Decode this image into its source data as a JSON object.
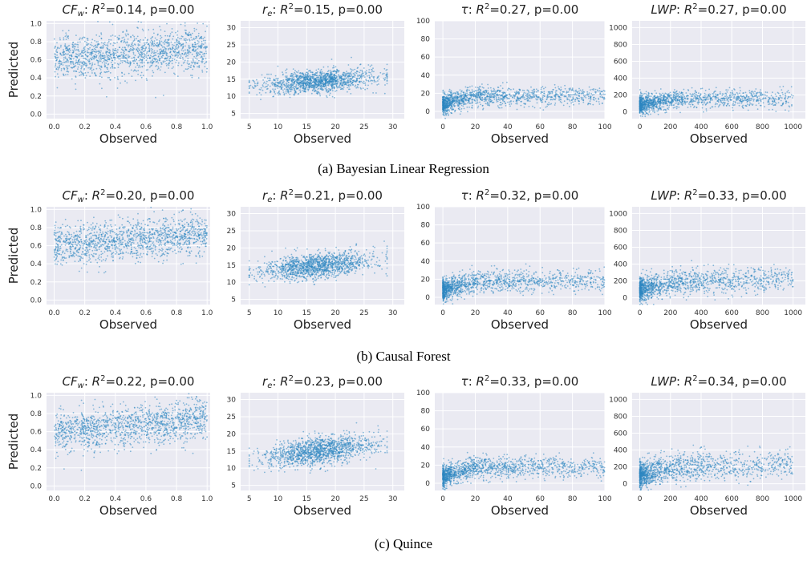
{
  "colors": {
    "background": "#eaeaf2",
    "grid": "#ffffff",
    "points": "#2e86c1"
  },
  "axis_labels": {
    "x": "Observed",
    "y": "Predicted"
  },
  "chart_data": [
    {
      "type": "scatter",
      "group": "(a) Bayesian Linear Regression",
      "panels": [
        {
          "var_main": "CF",
          "var_sub": "w",
          "stats": "=0.14, p=0.00",
          "xlabel": "Observed",
          "ylabel": "Predicted",
          "xlim": [
            -0.05,
            1.02
          ],
          "ylim": [
            -0.05,
            1.03
          ],
          "xticks": [
            "0.0",
            "0.2",
            "0.4",
            "0.6",
            "0.8",
            "1.0"
          ],
          "yticks": [
            "0.0",
            "0.2",
            "0.4",
            "0.6",
            "0.8",
            "1.0"
          ],
          "trend": {
            "x": [
              0.0,
              1.0
            ],
            "y": [
              0.62,
              0.72
            ],
            "spread": 0.12
          }
        },
        {
          "var_main": "r",
          "var_sub": "e",
          "stats": "=0.15, p=0.00",
          "xlabel": "Observed",
          "ylabel": "",
          "xlim": [
            3.5,
            32
          ],
          "ylim": [
            3.5,
            32
          ],
          "xticks": [
            "5",
            "10",
            "15",
            "20",
            "25",
            "30"
          ],
          "yticks": [
            "5",
            "10",
            "15",
            "20",
            "25",
            "30"
          ],
          "trend": {
            "x": [
              5,
              29
            ],
            "y": [
              13.0,
              15.8
            ],
            "spread": 1.6
          }
        },
        {
          "var_main": "τ",
          "var_sub": "",
          "stats": "=0.27, p=0.00",
          "xlabel": "Observed",
          "ylabel": "",
          "xlim": [
            -5,
            100
          ],
          "ylim": [
            -8,
            100
          ],
          "xticks": [
            "0",
            "20",
            "40",
            "60",
            "80",
            "100"
          ],
          "yticks": [
            "0",
            "20",
            "40",
            "60",
            "80",
            "100"
          ],
          "trend": {
            "x": [
              0,
              20,
              100
            ],
            "y": [
              8,
              17,
              17
            ],
            "spread": 5
          }
        },
        {
          "var_main": "LWP",
          "var_sub": "",
          "stats": "=0.27, p=0.00",
          "xlabel": "Observed",
          "ylabel": "",
          "xlim": [
            -50,
            1080
          ],
          "ylim": [
            -80,
            1080
          ],
          "xticks": [
            "0",
            "200",
            "400",
            "600",
            "800",
            "1000"
          ],
          "yticks": [
            "0",
            "200",
            "400",
            "600",
            "800",
            "1000"
          ],
          "trend": {
            "x": [
              0,
              200,
              1000
            ],
            "y": [
              80,
              150,
              160
            ],
            "spread": 55
          }
        }
      ]
    },
    {
      "type": "scatter",
      "group": "(b) Causal Forest",
      "panels": [
        {
          "var_main": "CF",
          "var_sub": "w",
          "stats": "=0.20, p=0.00",
          "xlabel": "Observed",
          "ylabel": "Predicted",
          "xlim": [
            -0.05,
            1.02
          ],
          "ylim": [
            -0.05,
            1.03
          ],
          "xticks": [
            "0.0",
            "0.2",
            "0.4",
            "0.6",
            "0.8",
            "1.0"
          ],
          "yticks": [
            "0.0",
            "0.2",
            "0.4",
            "0.6",
            "0.8",
            "1.0"
          ],
          "trend": {
            "x": [
              0.0,
              1.0
            ],
            "y": [
              0.6,
              0.74
            ],
            "spread": 0.11
          }
        },
        {
          "var_main": "r",
          "var_sub": "e",
          "stats": "=0.21, p=0.00",
          "xlabel": "Observed",
          "ylabel": "",
          "xlim": [
            3.5,
            32
          ],
          "ylim": [
            3.5,
            32
          ],
          "xticks": [
            "5",
            "10",
            "15",
            "20",
            "25",
            "30"
          ],
          "yticks": [
            "5",
            "10",
            "15",
            "20",
            "25",
            "30"
          ],
          "trend": {
            "x": [
              5,
              29
            ],
            "y": [
              12.8,
              17.0
            ],
            "spread": 1.8
          }
        },
        {
          "var_main": "τ",
          "var_sub": "",
          "stats": "=0.32, p=0.00",
          "xlabel": "Observed",
          "ylabel": "",
          "xlim": [
            -5,
            100
          ],
          "ylim": [
            -8,
            100
          ],
          "xticks": [
            "0",
            "20",
            "40",
            "60",
            "80",
            "100"
          ],
          "yticks": [
            "0",
            "20",
            "40",
            "60",
            "80",
            "100"
          ],
          "trend": {
            "x": [
              0,
              20,
              100
            ],
            "y": [
              8,
              18,
              18
            ],
            "spread": 6
          }
        },
        {
          "var_main": "LWP",
          "var_sub": "",
          "stats": "=0.33, p=0.00",
          "xlabel": "Observed",
          "ylabel": "",
          "xlim": [
            -50,
            1080
          ],
          "ylim": [
            -80,
            1080
          ],
          "xticks": [
            "0",
            "200",
            "400",
            "600",
            "800",
            "1000"
          ],
          "yticks": [
            "0",
            "200",
            "400",
            "600",
            "800",
            "1000"
          ],
          "trend": {
            "x": [
              0,
              200,
              1000
            ],
            "y": [
              90,
              180,
              220
            ],
            "spread": 75
          }
        }
      ]
    },
    {
      "type": "scatter",
      "group": "(c) Quince",
      "panels": [
        {
          "var_main": "CF",
          "var_sub": "w",
          "stats": "=0.22, p=0.00",
          "xlabel": "Observed",
          "ylabel": "Predicted",
          "xlim": [
            -0.05,
            1.02
          ],
          "ylim": [
            -0.05,
            1.03
          ],
          "xticks": [
            "0.0",
            "0.2",
            "0.4",
            "0.6",
            "0.8",
            "1.0"
          ],
          "yticks": [
            "0.0",
            "0.2",
            "0.4",
            "0.6",
            "0.8",
            "1.0"
          ],
          "trend": {
            "x": [
              0.0,
              1.0
            ],
            "y": [
              0.58,
              0.75
            ],
            "spread": 0.11
          }
        },
        {
          "var_main": "r",
          "var_sub": "e",
          "stats": "=0.23, p=0.00",
          "xlabel": "Observed",
          "ylabel": "",
          "xlim": [
            3.5,
            32
          ],
          "ylim": [
            3.5,
            32
          ],
          "xticks": [
            "5",
            "10",
            "15",
            "20",
            "25",
            "30"
          ],
          "yticks": [
            "5",
            "10",
            "15",
            "20",
            "25",
            "30"
          ],
          "trend": {
            "x": [
              5,
              29
            ],
            "y": [
              12.5,
              17.5
            ],
            "spread": 2.0
          }
        },
        {
          "var_main": "τ",
          "var_sub": "",
          "stats": "=0.33, p=0.00",
          "xlabel": "Observed",
          "ylabel": "",
          "xlim": [
            -5,
            100
          ],
          "ylim": [
            -8,
            100
          ],
          "xticks": [
            "0",
            "20",
            "40",
            "60",
            "80",
            "100"
          ],
          "yticks": [
            "0",
            "20",
            "40",
            "60",
            "80",
            "100"
          ],
          "trend": {
            "x": [
              0,
              20,
              100
            ],
            "y": [
              8,
              18,
              18
            ],
            "spread": 6
          }
        },
        {
          "var_main": "LWP",
          "var_sub": "",
          "stats": "=0.34, p=0.00",
          "xlabel": "Observed",
          "ylabel": "",
          "xlim": [
            -50,
            1080
          ],
          "ylim": [
            -80,
            1080
          ],
          "xticks": [
            "0",
            "200",
            "400",
            "600",
            "800",
            "1000"
          ],
          "yticks": [
            "0",
            "200",
            "400",
            "600",
            "800",
            "1000"
          ],
          "trend": {
            "x": [
              0,
              200,
              1000
            ],
            "y": [
              90,
              190,
              230
            ],
            "spread": 80
          }
        }
      ]
    }
  ]
}
